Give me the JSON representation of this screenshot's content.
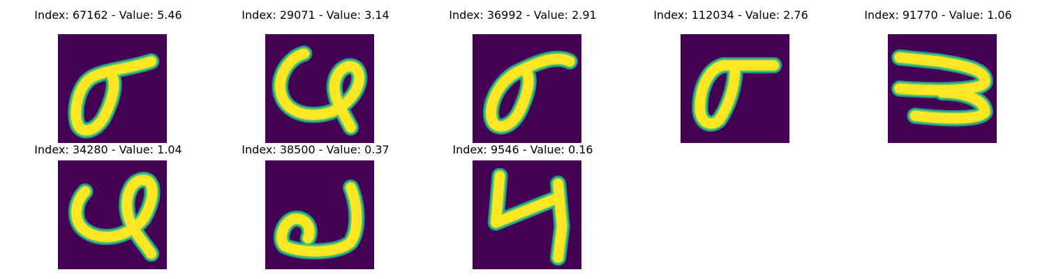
{
  "colors": {
    "background": "#440154",
    "edge": "#21918c",
    "mid": "#5ec962",
    "core": "#fde725"
  },
  "panels": [
    {
      "title": "Index: 67162 - Value: 5.46",
      "glyph": "sigma-like-loop-with-rising-tail"
    },
    {
      "title": "Index: 29071 - Value: 3.14",
      "glyph": "cursive-loop-with-tail"
    },
    {
      "title": "Index: 36992 - Value: 2.91",
      "glyph": "sigma-like-loop-with-rising-tail"
    },
    {
      "title": "Index: 112034 - Value: 2.76",
      "glyph": "sigma-like-loop-with-flat-tail"
    },
    {
      "title": "Index: 91770 - Value: 1.06",
      "glyph": "horizontal-zigzag-three"
    },
    {
      "title": "Index: 34280 - Value: 1.04",
      "glyph": "cursive-loop-with-tail"
    },
    {
      "title": "Index: 38500 - Value: 0.37",
      "glyph": "small-loop-with-hook"
    },
    {
      "title": "Index: 9546 - Value: 0.16",
      "glyph": "angular-four-like"
    }
  ]
}
